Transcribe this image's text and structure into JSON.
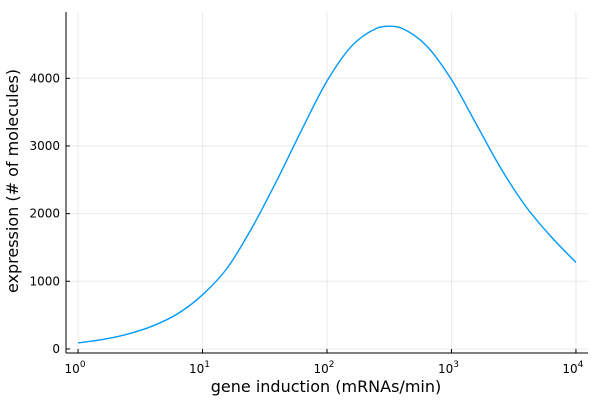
{
  "chart_data": {
    "type": "line",
    "title": "",
    "xlabel": "gene induction (mRNAs/min)",
    "ylabel": "expression (# of molecules)",
    "x_scale": "log10",
    "xlim": [
      0.8,
      12500
    ],
    "ylim": [
      -60,
      4980
    ],
    "x_ticks": [
      {
        "value": 1,
        "base": "10",
        "exp": "0"
      },
      {
        "value": 10,
        "base": "10",
        "exp": "1"
      },
      {
        "value": 100,
        "base": "10",
        "exp": "2"
      },
      {
        "value": 1000,
        "base": "10",
        "exp": "3"
      },
      {
        "value": 10000,
        "base": "10",
        "exp": "4"
      }
    ],
    "y_ticks": [
      {
        "value": 0,
        "label": "0"
      },
      {
        "value": 1000,
        "label": "1000"
      },
      {
        "value": 2000,
        "label": "2000"
      },
      {
        "value": 3000,
        "label": "3000"
      },
      {
        "value": 4000,
        "label": "4000"
      }
    ],
    "grid": true,
    "legend": "none",
    "series": [
      {
        "color": "#009AFA",
        "x": [
          1,
          1.585,
          2.512,
          3.981,
          6.31,
          10,
          15.85,
          25.12,
          39.81,
          63.1,
          100,
          158.5,
          251.2,
          316.2,
          398.1,
          631,
          1000,
          1585,
          2512,
          3981,
          6310,
          10000
        ],
        "y": [
          90,
          140,
          220,
          340,
          520,
          800,
          1200,
          1800,
          2500,
          3250,
          3960,
          4480,
          4740,
          4770,
          4740,
          4480,
          3980,
          3320,
          2660,
          2100,
          1660,
          1280
        ]
      }
    ]
  }
}
